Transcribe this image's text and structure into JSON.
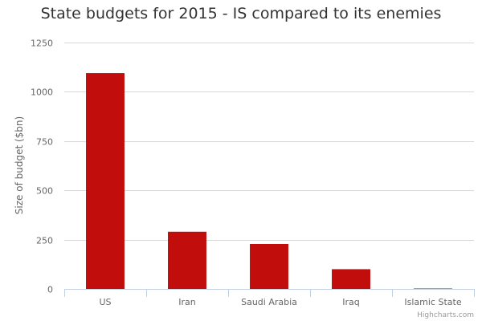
{
  "chart_data": {
    "type": "bar",
    "title": "State budgets for 2015 - IS compared to its enemies",
    "xlabel": "",
    "ylabel": "Size of budget ($bn)",
    "categories": [
      "US",
      "Iran",
      "Saudi Arabia",
      "Iraq",
      "Islamic State"
    ],
    "values": [
      1095,
      290,
      228,
      100,
      2
    ],
    "ylim": [
      0,
      1250
    ],
    "yticks": [
      "0",
      "250",
      "500",
      "750",
      "1000",
      "1250"
    ],
    "grid": true,
    "legend": "none",
    "bar_color": "#c20d0d",
    "credits": "Highcharts.com"
  }
}
